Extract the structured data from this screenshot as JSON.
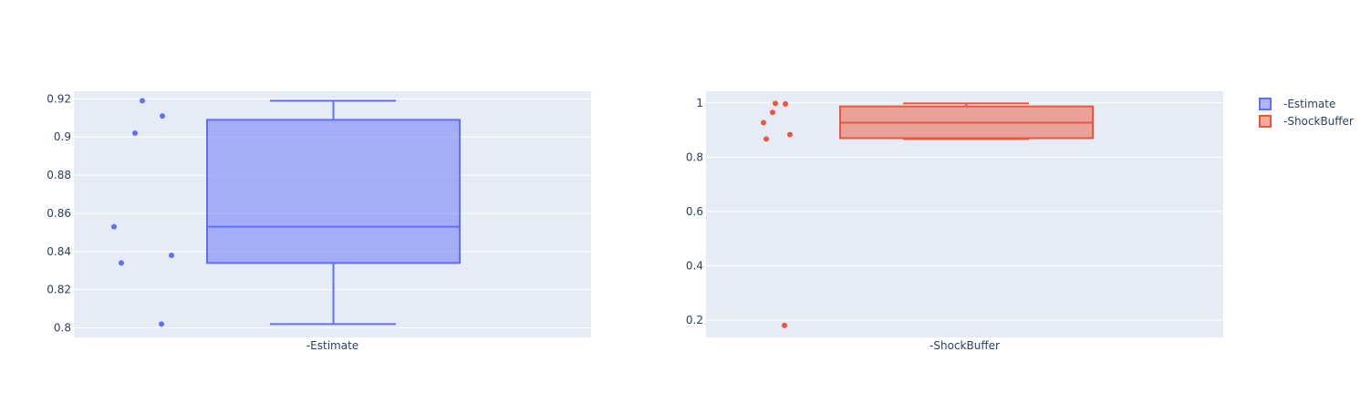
{
  "chart_data": [
    {
      "type": "box",
      "category": "-Estimate",
      "color": "#636efa",
      "ylim": [
        0.795,
        0.924
      ],
      "yticks": [
        0.8,
        0.82,
        0.84,
        0.86,
        0.88,
        0.9,
        0.92
      ],
      "ytick_labels": [
        "0.8",
        "0.82",
        "0.84",
        "0.86",
        "0.88",
        "0.9",
        "0.92"
      ],
      "box": {
        "min": 0.802,
        "q1": 0.834,
        "median": 0.853,
        "q3": 0.909,
        "max": 0.919
      },
      "points": [
        0.919,
        0.911,
        0.902,
        0.853,
        0.838,
        0.834,
        0.802
      ],
      "grid": true
    },
    {
      "type": "box",
      "category": "-ShockBuffer",
      "color": "#ef553b",
      "ylim": [
        0.136,
        1.043
      ],
      "yticks": [
        0.2,
        0.4,
        0.6,
        0.8,
        1.0
      ],
      "ytick_labels": [
        "0.2",
        "0.4",
        "0.6",
        "0.8",
        "1"
      ],
      "box": {
        "min": 0.867,
        "q1": 0.87,
        "median": 0.927,
        "q3": 0.987,
        "max": 0.998
      },
      "points": [
        0.998,
        0.996,
        0.965,
        0.927,
        0.883,
        0.867,
        0.18
      ],
      "grid": true
    }
  ],
  "legend": {
    "placement": "top-right",
    "items": [
      {
        "label": "-Estimate",
        "color": "#636efa"
      },
      {
        "label": "-ShockBuffer",
        "color": "#ef553b"
      }
    ]
  },
  "colors": {
    "plot_bg": "#e5ecf6",
    "grid": "#ffffff",
    "text": "#2a3f5f"
  }
}
